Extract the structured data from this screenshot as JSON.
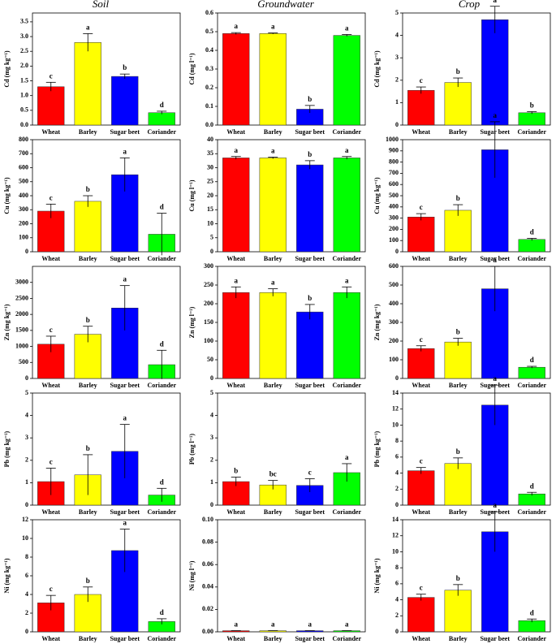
{
  "column_titles": [
    "Soil",
    "Groundwater",
    "Crop"
  ],
  "chart_data": [
    {
      "type": "bar",
      "ylabel": "Cd (mg kg⁻¹)",
      "categories": [
        "Wheat",
        "Barley",
        "Sugar beet",
        "Coriander"
      ],
      "values": [
        1.3,
        2.8,
        1.65,
        0.42
      ],
      "errors": [
        0.15,
        0.3,
        0.08,
        0.05
      ],
      "letters": [
        "c",
        "a",
        "b",
        "d"
      ],
      "colors": [
        "#ff0000",
        "#ffff00",
        "#0000ff",
        "#00ff00"
      ],
      "ylim": [
        0,
        3.8
      ],
      "yticks": [
        {
          "value": 0,
          "label": "0.0"
        },
        0.5,
        {
          "value": 1,
          "label": "1.0"
        },
        1.5,
        {
          "value": 2,
          "label": "2.0"
        },
        2.5,
        {
          "value": 3,
          "label": "3.0"
        },
        3.5
      ]
    },
    {
      "type": "bar",
      "ylabel": "Cd (mg l⁻¹)",
      "categories": [
        "Wheat",
        "Barley",
        "Sugar beet",
        "Coriander"
      ],
      "values": [
        0.49,
        0.49,
        0.085,
        0.48
      ],
      "errors": [
        0.005,
        0.003,
        0.02,
        0.005
      ],
      "letters": [
        "a",
        "a",
        "b",
        "a"
      ],
      "colors": [
        "#ff0000",
        "#ffff00",
        "#0000ff",
        "#00ff00"
      ],
      "ylim": [
        0,
        0.6
      ],
      "yticks": [
        {
          "value": 0,
          "label": "0.0"
        },
        0.1,
        0.2,
        0.3,
        0.4,
        0.5,
        0.6
      ]
    },
    {
      "type": "bar",
      "ylabel": "Cd (mg kg⁻¹)",
      "categories": [
        "Wheat",
        "Barley",
        "Sugar beet",
        "Coriander"
      ],
      "values": [
        1.55,
        1.9,
        4.7,
        0.55
      ],
      "errors": [
        0.15,
        0.2,
        0.6,
        0.05
      ],
      "letters": [
        "c",
        "b",
        "a",
        "b"
      ],
      "colors": [
        "#ff0000",
        "#ffff00",
        "#0000ff",
        "#00ff00"
      ],
      "ylim": [
        0,
        5
      ],
      "yticks": [
        0,
        1,
        2,
        3,
        4,
        5
      ]
    },
    {
      "type": "bar",
      "ylabel": "Cu (mg kg⁻¹)",
      "categories": [
        "Wheat",
        "Barley",
        "Sugar beet",
        "Coriander"
      ],
      "values": [
        290,
        360,
        550,
        125
      ],
      "errors": [
        50,
        40,
        120,
        150
      ],
      "letters": [
        "c",
        "b",
        "a",
        "d"
      ],
      "colors": [
        "#ff0000",
        "#ffff00",
        "#0000ff",
        "#00ff00"
      ],
      "ylim": [
        0,
        800
      ],
      "yticks": [
        0,
        100,
        200,
        300,
        400,
        500,
        600,
        700,
        800
      ]
    },
    {
      "type": "bar",
      "ylabel": "Cu (mg l⁻¹)",
      "categories": [
        "Wheat",
        "Barley",
        "Sugar beet",
        "Coriander"
      ],
      "values": [
        33.5,
        33.5,
        31,
        33.5
      ],
      "errors": [
        0.5,
        0.3,
        1.5,
        0.5
      ],
      "letters": [
        "a",
        "a",
        "b",
        "a"
      ],
      "colors": [
        "#ff0000",
        "#ffff00",
        "#0000ff",
        "#00ff00"
      ],
      "ylim": [
        0,
        40
      ],
      "yticks": [
        0,
        5,
        10,
        15,
        20,
        25,
        30,
        35,
        40
      ]
    },
    {
      "type": "bar",
      "ylabel": "Cu (mg kg⁻¹)",
      "categories": [
        "Wheat",
        "Barley",
        "Sugar beet",
        "Coriander"
      ],
      "values": [
        310,
        370,
        910,
        110
      ],
      "errors": [
        30,
        50,
        250,
        10
      ],
      "letters": [
        "c",
        "b",
        "a",
        "d"
      ],
      "colors": [
        "#ff0000",
        "#ffff00",
        "#0000ff",
        "#00ff00"
      ],
      "ylim": [
        0,
        1000
      ],
      "yticks": [
        0,
        100,
        200,
        300,
        400,
        500,
        600,
        700,
        800,
        900,
        1000
      ]
    },
    {
      "type": "bar",
      "ylabel": "Zn (mg kg⁻¹)",
      "categories": [
        "Wheat",
        "Barley",
        "Sugar beet",
        "Coriander"
      ],
      "values": [
        1070,
        1380,
        2200,
        430
      ],
      "errors": [
        250,
        250,
        700,
        450
      ],
      "letters": [
        "c",
        "b",
        "a",
        "d"
      ],
      "colors": [
        "#ff0000",
        "#ffff00",
        "#0000ff",
        "#00ff00"
      ],
      "ylim": [
        0,
        3500
      ],
      "yticks": [
        0,
        500,
        1000,
        1500,
        2000,
        2500,
        3000
      ]
    },
    {
      "type": "bar",
      "ylabel": "Zn (mg l⁻¹)",
      "categories": [
        "Wheat",
        "Barley",
        "Sugar beet",
        "Coriander"
      ],
      "values": [
        230,
        230,
        178,
        230
      ],
      "errors": [
        15,
        10,
        20,
        15
      ],
      "letters": [
        "a",
        "a",
        "b",
        "a"
      ],
      "colors": [
        "#ff0000",
        "#ffff00",
        "#0000ff",
        "#00ff00"
      ],
      "ylim": [
        0,
        300
      ],
      "yticks": [
        0,
        50,
        100,
        150,
        200,
        250,
        300
      ]
    },
    {
      "type": "bar",
      "ylabel": "Zn (mg kg⁻¹)",
      "categories": [
        "Wheat",
        "Barley",
        "Sugar beet",
        "Coriander"
      ],
      "values": [
        160,
        195,
        480,
        60
      ],
      "errors": [
        15,
        20,
        120,
        5
      ],
      "letters": [
        "c",
        "b",
        "a",
        "d"
      ],
      "colors": [
        "#ff0000",
        "#ffff00",
        "#0000ff",
        "#00ff00"
      ],
      "ylim": [
        0,
        600
      ],
      "yticks": [
        0,
        100,
        200,
        300,
        400,
        500,
        600
      ]
    },
    {
      "type": "bar",
      "ylabel": "Pb (mg kg⁻¹)",
      "categories": [
        "Wheat",
        "Barley",
        "Sugar beet",
        "Coriander"
      ],
      "values": [
        1.05,
        1.35,
        2.4,
        0.45
      ],
      "errors": [
        0.6,
        0.9,
        1.2,
        0.3
      ],
      "letters": [
        "c",
        "b",
        "a",
        "d"
      ],
      "colors": [
        "#ff0000",
        "#ffff00",
        "#0000ff",
        "#00ff00"
      ],
      "ylim": [
        0,
        5
      ],
      "yticks": [
        0,
        1,
        2,
        3,
        4,
        5
      ]
    },
    {
      "type": "bar",
      "ylabel": "Pb (mg l⁻¹)",
      "categories": [
        "Wheat",
        "Barley",
        "Sugar beet",
        "Coriander"
      ],
      "values": [
        1.05,
        0.9,
        0.88,
        1.45
      ],
      "errors": [
        0.2,
        0.2,
        0.3,
        0.4
      ],
      "letters": [
        "b",
        "bc",
        "c",
        "a"
      ],
      "colors": [
        "#ff0000",
        "#ffff00",
        "#0000ff",
        "#00ff00"
      ],
      "ylim": [
        0,
        5
      ],
      "yticks": [
        0,
        1,
        2,
        3,
        4,
        5
      ]
    },
    {
      "type": "bar",
      "ylabel": "Pb (mg kg⁻¹)",
      "categories": [
        "Wheat",
        "Barley",
        "Sugar beet",
        "Coriander"
      ],
      "values": [
        4.3,
        5.2,
        12.5,
        1.4
      ],
      "errors": [
        0.4,
        0.7,
        2.5,
        0.2
      ],
      "letters": [
        "c",
        "b",
        "a",
        "d"
      ],
      "colors": [
        "#ff0000",
        "#ffff00",
        "#0000ff",
        "#00ff00"
      ],
      "ylim": [
        0,
        14
      ],
      "yticks": [
        0,
        2,
        4,
        6,
        8,
        10,
        12,
        14
      ]
    },
    {
      "type": "bar",
      "ylabel": "Ni (mg kg⁻¹)",
      "categories": [
        "Wheat",
        "Barley",
        "Sugar beet",
        "Coriander"
      ],
      "values": [
        3.1,
        4.0,
        8.7,
        1.1
      ],
      "errors": [
        0.8,
        0.8,
        2.3,
        0.3
      ],
      "letters": [
        "c",
        "b",
        "a",
        "d"
      ],
      "colors": [
        "#ff0000",
        "#ffff00",
        "#0000ff",
        "#00ff00"
      ],
      "ylim": [
        0,
        12
      ],
      "yticks": [
        0,
        2,
        4,
        6,
        8,
        10,
        12
      ]
    },
    {
      "type": "bar",
      "ylabel": "Ni (mg l⁻¹)",
      "categories": [
        "Wheat",
        "Barley",
        "Sugar beet",
        "Coriander"
      ],
      "values": [
        0.001,
        0.001,
        0.001,
        0.001
      ],
      "errors": [
        0,
        0,
        0,
        0
      ],
      "letters": [
        "a",
        "a",
        "a",
        "a"
      ],
      "colors": [
        "#ff0000",
        "#ffff00",
        "#0000ff",
        "#00ff00"
      ],
      "ylim": [
        0,
        0.1
      ],
      "yticks": [
        {
          "value": 0,
          "label": "0.00"
        },
        0.02,
        0.04,
        0.06,
        0.08,
        {
          "value": 0.1,
          "label": "0.10"
        }
      ]
    },
    {
      "type": "bar",
      "ylabel": "Ni (mg kg⁻¹)",
      "categories": [
        "Wheat",
        "Barley",
        "Sugar beet",
        "Coriander"
      ],
      "values": [
        4.3,
        5.2,
        12.5,
        1.4
      ],
      "errors": [
        0.4,
        0.7,
        2.5,
        0.2
      ],
      "letters": [
        "c",
        "b",
        "a",
        "d"
      ],
      "colors": [
        "#ff0000",
        "#ffff00",
        "#0000ff",
        "#00ff00"
      ],
      "ylim": [
        0,
        14
      ],
      "yticks": [
        0,
        2,
        4,
        6,
        8,
        10,
        12,
        14
      ]
    }
  ]
}
